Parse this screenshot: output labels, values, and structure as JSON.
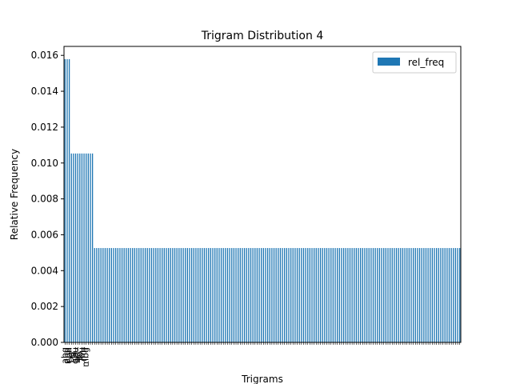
{
  "chart_data": {
    "type": "bar",
    "title": "Trigram Distribution 4",
    "xlabel": "Trigrams",
    "ylabel": "Relative Frequency",
    "ylim": [
      0,
      0.0165
    ],
    "y_ticks": [
      "0.000",
      "0.002",
      "0.004",
      "0.006",
      "0.008",
      "0.010",
      "0.012",
      "0.014",
      "0.016"
    ],
    "grid": false,
    "legend": {
      "position": "top-right",
      "entries": [
        "rel_freq"
      ]
    },
    "series": [
      {
        "name": "rel_freq",
        "color": "#1f77b4",
        "value_groups": [
          {
            "value": 0.01579,
            "count": 3
          },
          {
            "value": 0.01053,
            "count": 11
          },
          {
            "value": 0.00526,
            "count": 174
          }
        ]
      }
    ],
    "visible_tick_labels": [
      "abg",
      "ebg",
      "ebh",
      "bg_",
      "_a_",
      "gbu",
      "bu_",
      "lb_",
      "lbu",
      "_mb",
      "mbg"
    ]
  }
}
